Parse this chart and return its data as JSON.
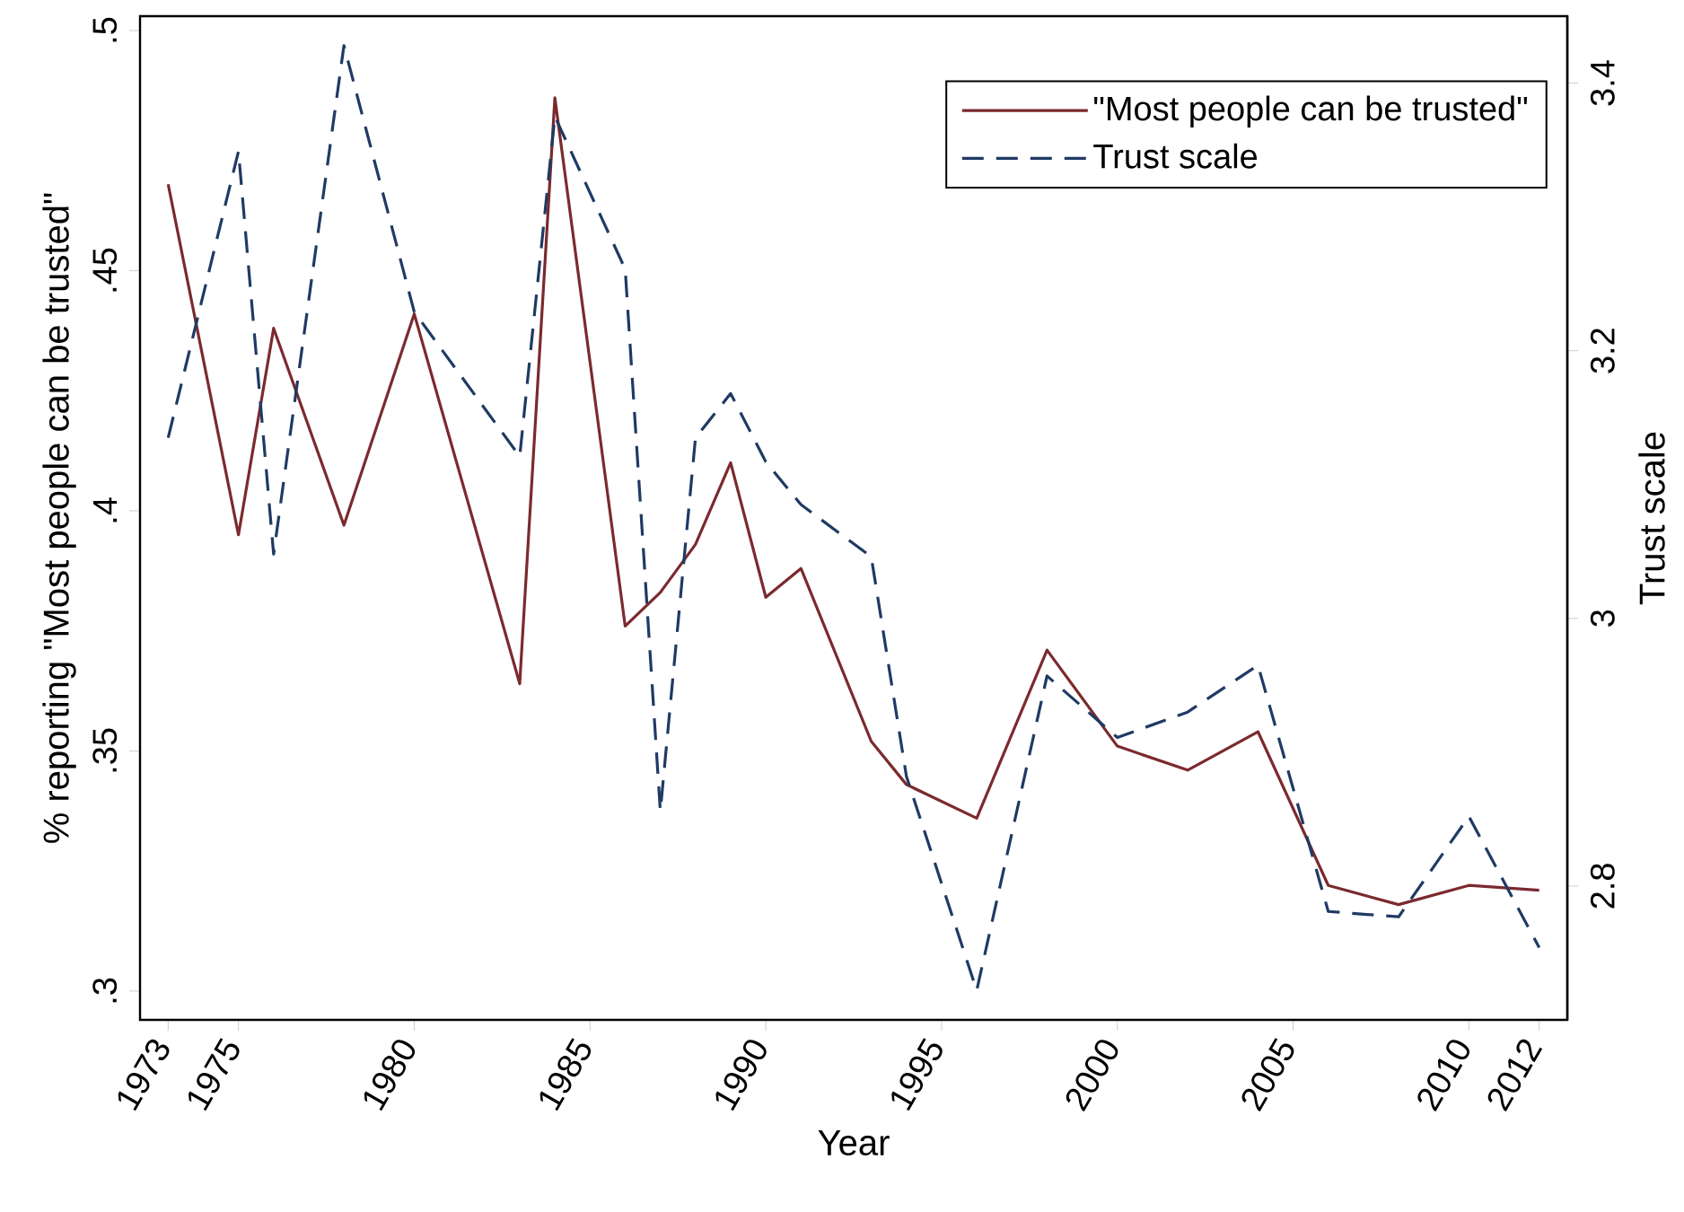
{
  "chart_data": {
    "type": "line",
    "xlabel": "Year",
    "ylabel": "% reporting \"Most people can be trusted\"",
    "y2label": "Trust scale",
    "x": [
      1973,
      1975,
      1976,
      1978,
      1980,
      1983,
      1984,
      1986,
      1987,
      1988,
      1989,
      1990,
      1991,
      1993,
      1994,
      1996,
      1998,
      2000,
      2002,
      2004,
      2006,
      2008,
      2010,
      2012
    ],
    "series": [
      {
        "name": "\"Most people can be trusted\"",
        "color": "#7b2a2e",
        "line_style": "solid",
        "values": [
          0.468,
          0.395,
          0.438,
          0.397,
          0.441,
          0.364,
          0.486,
          0.376,
          0.383,
          0.393,
          0.41,
          0.382,
          0.388,
          0.352,
          0.343,
          0.336,
          0.371,
          0.351,
          0.346,
          0.354,
          0.322,
          0.318,
          0.322,
          0.321
        ]
      },
      {
        "name": "Trust scale",
        "color": "#1f3a64",
        "line_style": "dashed",
        "axis": "y2",
        "values": [
          3.135,
          3.349,
          3.048,
          3.428,
          3.229,
          3.121,
          3.375,
          3.261,
          2.856,
          3.135,
          3.168,
          3.117,
          3.085,
          3.046,
          2.882,
          2.722,
          2.957,
          2.911,
          2.93,
          2.965,
          2.781,
          2.777,
          2.852,
          2.754
        ]
      }
    ],
    "xlim": [
      1972.2,
      2012.8
    ],
    "xticks": [
      1973,
      1975,
      1980,
      1985,
      1990,
      1995,
      2000,
      2005,
      2010,
      2012
    ],
    "ylim": [
      0.294,
      0.503
    ],
    "yticks": [
      {
        "value": 0.3,
        "label": ".3"
      },
      {
        "value": 0.35,
        "label": ".35"
      },
      {
        "value": 0.4,
        "label": ".4"
      },
      {
        "value": 0.45,
        "label": ".45"
      },
      {
        "value": 0.5,
        "label": ".5"
      }
    ],
    "y2lim": [
      2.7,
      3.45
    ],
    "y2ticks": [
      2.8,
      3,
      3.2,
      3.4
    ],
    "legend": "top right",
    "grid": false,
    "marker": "none"
  }
}
